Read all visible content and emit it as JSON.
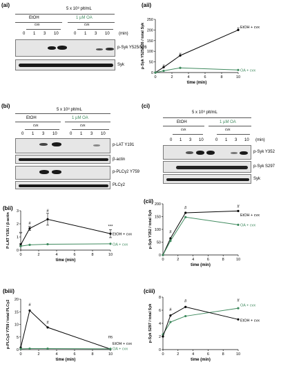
{
  "panels": {
    "ai": {
      "label": "(ai)",
      "conc": "5 x 10⁸ plt/mL",
      "g1": "EtOH",
      "g2": "1 µM OA",
      "t1": "cvx",
      "t2": "cvx",
      "times": [
        "0",
        "1",
        "3",
        "10",
        "0",
        "1",
        "3",
        "10"
      ],
      "unit": "(min)",
      "blots": [
        "p-Syk Y525/526",
        "Syk"
      ]
    },
    "bi": {
      "label": "(bi)",
      "conc": "5 x 10⁸ plt/mL",
      "g1": "EtOH",
      "g2": "1 µM OA",
      "t1": "cvx",
      "t2": "cvx",
      "times": [
        "0",
        "1",
        "3",
        "10",
        "0",
        "1",
        "3",
        "10"
      ],
      "blots": [
        "p-LAT Y191",
        "β-actin",
        "p-PLCγ2 Y759",
        "PLCγ2"
      ]
    },
    "ci": {
      "label": "(ci)",
      "conc": "5 x 10⁸ plt/mL",
      "g1": "EtOH",
      "g2": "1 µM OA",
      "t1": "cvx",
      "t2": "cvx",
      "times": [
        "0",
        "1",
        "3",
        "10",
        "0",
        "1",
        "3",
        "10"
      ],
      "unit": "(min)",
      "blots": [
        "p-Syk Y352",
        "p-Syk S297",
        "Syk"
      ]
    }
  },
  "colors": {
    "etoh": "#000000",
    "oa": "#3f8a5e"
  },
  "chart_data": [
    {
      "id": "aii",
      "label": "(aii)",
      "type": "line",
      "xlabel": "time (min)",
      "ylabel": "p-Syk Y525/526 / total Syk",
      "x": [
        0,
        1,
        3,
        10
      ],
      "xticks": [
        "0",
        "2",
        "4",
        "6",
        "8",
        "10"
      ],
      "ylim": [
        0,
        250
      ],
      "yticks": [
        "0",
        "50",
        "100",
        "150",
        "200",
        "250"
      ],
      "series": [
        {
          "name": "EtOH + cvx",
          "values": [
            0,
            25,
            80,
            200
          ],
          "color": "#000000",
          "labelY": 215
        },
        {
          "name": "OA + cvx",
          "values": [
            0,
            8,
            22,
            12
          ],
          "color": "#3f8a5e",
          "labelY": 12
        }
      ],
      "annotations": [
        {
          "x": 1,
          "y": 25,
          "text": "#"
        },
        {
          "x": 3,
          "y": 80,
          "text": "#"
        },
        {
          "x": 10,
          "y": 200,
          "text": "#"
        }
      ]
    },
    {
      "id": "bii",
      "label": "(bii)",
      "type": "line",
      "xlabel": "time (min)",
      "ylabel": "P-LAT Y191 / β-actin",
      "x": [
        0,
        1,
        3,
        10
      ],
      "xticks": [
        "0",
        "2",
        "4",
        "6",
        "8",
        "10"
      ],
      "ylim": [
        0,
        3
      ],
      "yticks": [
        "0",
        "1",
        "2",
        "3"
      ],
      "series": [
        {
          "name": "EtOH + cvx",
          "values": [
            0.4,
            1.65,
            2.35,
            1.25
          ],
          "err": [
            0.1,
            0.15,
            0.45,
            0.3
          ],
          "color": "#000000",
          "labelY": 1.25
        },
        {
          "name": "OA + cvx",
          "values": [
            0.3,
            0.4,
            0.45,
            0.48
          ],
          "color": "#3f8a5e",
          "labelY": 0.45
        }
      ],
      "annotations": [
        {
          "x": 0,
          "y": 1.15,
          "text": "**"
        },
        {
          "x": 1,
          "y": 1.95,
          "text": "#"
        },
        {
          "x": 3,
          "y": 2.9,
          "text": "#"
        },
        {
          "x": 10,
          "y": 1.7,
          "text": "***"
        }
      ]
    },
    {
      "id": "biii",
      "label": "(biii)",
      "type": "line",
      "xlabel": "time (min)",
      "ylabel": "p-PLCγ2 Y759 / total PLCγ2",
      "x": [
        0,
        1,
        3,
        10
      ],
      "xticks": [
        "0",
        "2",
        "4",
        "6",
        "8",
        "10"
      ],
      "ylim": [
        0,
        20
      ],
      "yticks": [
        "0",
        "5",
        "10",
        "15",
        "20"
      ],
      "series": [
        {
          "name": "EtOH + cvx",
          "values": [
            0.8,
            15.5,
            8.8,
            0.2
          ],
          "color": "#000000",
          "labelY": 2.4
        },
        {
          "name": "OA + cvx",
          "values": [
            0.3,
            0.4,
            0.4,
            0.3
          ],
          "color": "#3f8a5e",
          "labelY": 0.4
        }
      ],
      "annotations": [
        {
          "x": 1,
          "y": 17.3,
          "text": "#"
        },
        {
          "x": 3,
          "y": 10.3,
          "text": "#"
        },
        {
          "x": 10,
          "y": 4.5,
          "text": "ns"
        }
      ]
    },
    {
      "id": "cii",
      "label": "(cii)",
      "type": "line",
      "xlabel": "time (min)",
      "ylabel": "p-Syk Y352 / total Syk",
      "x": [
        0,
        1,
        3,
        10
      ],
      "xticks": [
        "0",
        "2",
        "4",
        "6",
        "8",
        "10"
      ],
      "ylim": [
        0,
        200
      ],
      "yticks": [
        "0",
        "50",
        "100",
        "150",
        "200"
      ],
      "series": [
        {
          "name": "EtOH + cvx",
          "values": [
            0,
            65,
            165,
            172
          ],
          "color": "#000000",
          "labelY": 157
        },
        {
          "name": "OA + cvx",
          "values": [
            0,
            55,
            148,
            118
          ],
          "color": "#3f8a5e",
          "labelY": 118
        }
      ],
      "annotations": [
        {
          "x": 1,
          "y": 85,
          "text": "#"
        },
        {
          "x": 3,
          "y": 180,
          "text": "#"
        },
        {
          "x": 10,
          "y": 185,
          "text": "#"
        }
      ]
    },
    {
      "id": "ciii",
      "label": "(ciii)",
      "type": "line",
      "xlabel": "time (min)",
      "ylabel": "p-Syk S297 / total Syk",
      "x": [
        0,
        1,
        3,
        10
      ],
      "xticks": [
        "0",
        "2",
        "4",
        "6",
        "8",
        "10"
      ],
      "ylim": [
        0,
        8
      ],
      "yticks": [
        "0",
        "2",
        "4",
        "6",
        "8"
      ],
      "series": [
        {
          "name": "OA + cvx",
          "values": [
            2.3,
            4.2,
            5.1,
            6.3
          ],
          "color": "#3f8a5e",
          "labelY": 6.8
        },
        {
          "name": "EtOH + cvx",
          "values": [
            2.0,
            5.2,
            6.5,
            4.6
          ],
          "color": "#000000",
          "labelY": 4.5
        }
      ],
      "annotations": [
        {
          "x": 1,
          "y": 5.9,
          "text": "#"
        },
        {
          "x": 3,
          "y": 7.2,
          "text": "#"
        },
        {
          "x": 10,
          "y": 7.3,
          "text": "#"
        }
      ]
    }
  ]
}
